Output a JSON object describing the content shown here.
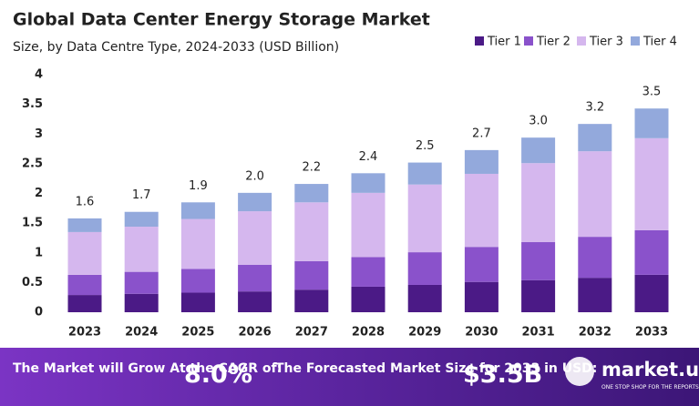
{
  "chart_data": {
    "type": "stacked_bar",
    "title": "Global Data Center Energy Storage Market",
    "subtitle": "Size, by Data Centre Type, 2024-2033 (USD Billion)",
    "categories": [
      "2023",
      "2024",
      "2025",
      "2026",
      "2027",
      "2028",
      "2029",
      "2030",
      "2031",
      "2032",
      "2033"
    ],
    "series": [
      {
        "name": "Tier 1",
        "color": "#4b1a86",
        "values": [
          0.29,
          0.31,
          0.33,
          0.35,
          0.38,
          0.43,
          0.46,
          0.51,
          0.54,
          0.58,
          0.63
        ]
      },
      {
        "name": "Tier 2",
        "color": "#8a52cb",
        "values": [
          0.34,
          0.37,
          0.4,
          0.45,
          0.48,
          0.5,
          0.55,
          0.59,
          0.64,
          0.69,
          0.75
        ]
      },
      {
        "name": "Tier 3",
        "color": "#d5b7ee",
        "values": [
          0.72,
          0.76,
          0.84,
          0.9,
          0.99,
          1.08,
          1.14,
          1.23,
          1.33,
          1.44,
          1.55
        ]
      },
      {
        "name": "Tier 4",
        "color": "#93a9dc",
        "values": [
          0.23,
          0.25,
          0.28,
          0.31,
          0.31,
          0.33,
          0.37,
          0.4,
          0.43,
          0.46,
          0.5
        ]
      }
    ],
    "total_labels": [
      "1.6",
      "1.7",
      "1.9",
      "2.0",
      "2.2",
      "2.4",
      "2.5",
      "2.7",
      "3.0",
      "3.2",
      "3.5"
    ],
    "ylim": [
      0,
      4
    ],
    "yticks": [
      0,
      0.5,
      1,
      1.5,
      2,
      2.5,
      3,
      3.5,
      4
    ],
    "grid": false,
    "legend": "top-right"
  },
  "footer": {
    "cagr_caption": "The Market will Grow At the CAGR of:",
    "cagr_value": "8.0%",
    "forecast_caption": "The Forecasted Market Size for 2033 in USD:",
    "forecast_value": "$3.5B",
    "brand": "market.us",
    "tagline": "ONE STOP SHOP FOR THE REPORTS"
  }
}
